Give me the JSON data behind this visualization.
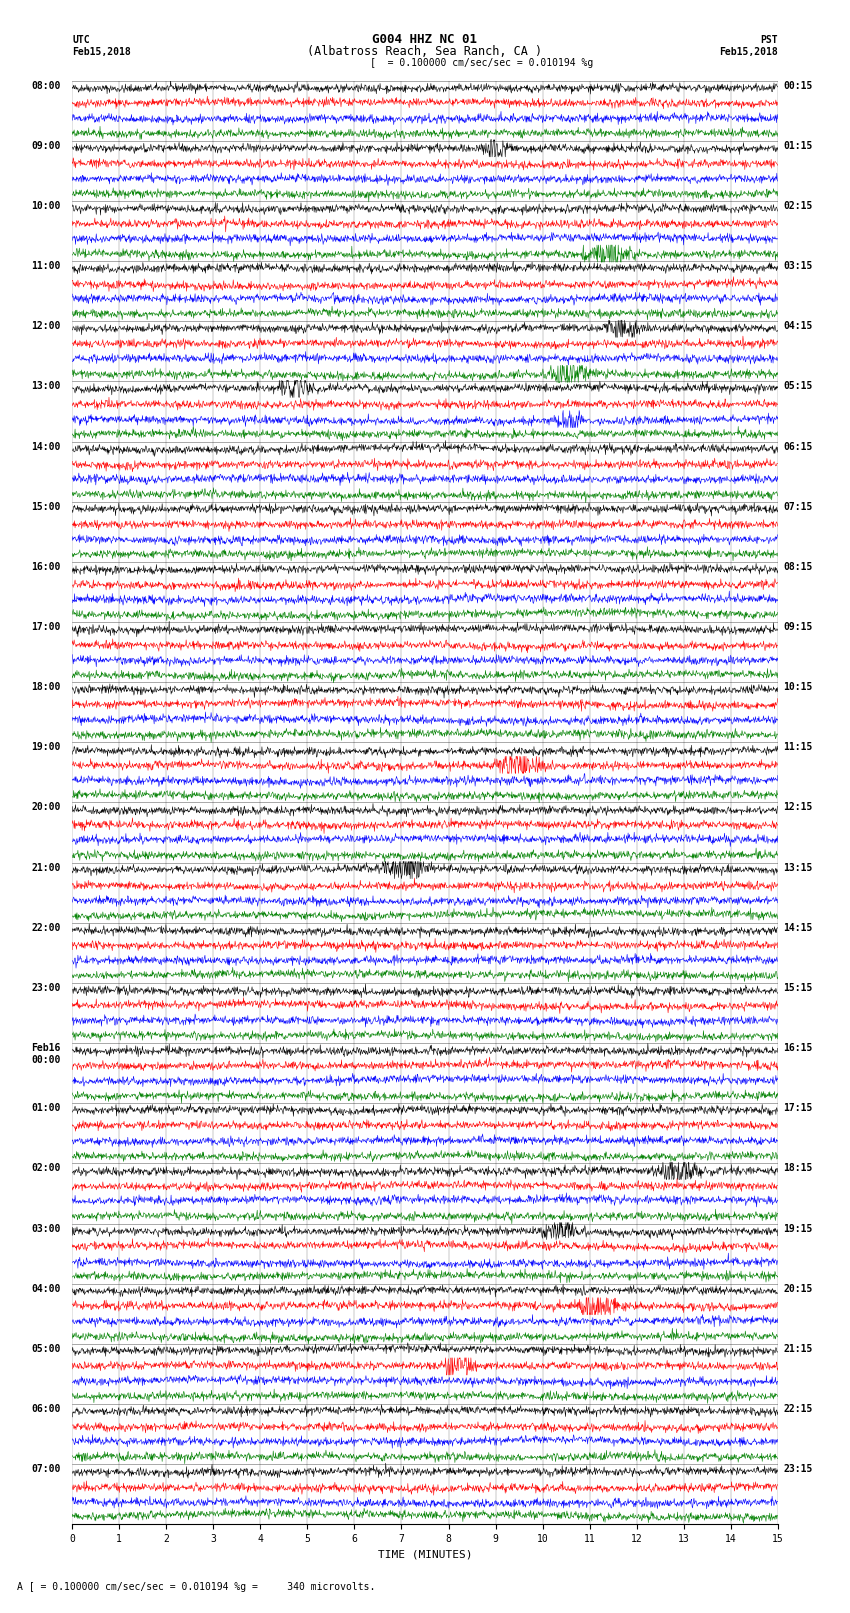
{
  "title_line1": "G004 HHZ NC 01",
  "title_line2": "(Albatross Reach, Sea Ranch, CA )",
  "scale_label": "= 0.100000 cm/sec/sec = 0.010194 %g",
  "bottom_label": "A [ = 0.100000 cm/sec/sec = 0.010194 %g =     340 microvolts.",
  "xlabel": "TIME (MINUTES)",
  "left_header_line1": "UTC",
  "left_header_line2": "Feb15,2018",
  "right_header_line1": "PST",
  "right_header_line2": "Feb15,2018",
  "background_color": "#ffffff",
  "trace_colors": [
    "black",
    "red",
    "blue",
    "green"
  ],
  "left_times": [
    "08:00",
    "09:00",
    "10:00",
    "11:00",
    "12:00",
    "13:00",
    "14:00",
    "15:00",
    "16:00",
    "17:00",
    "18:00",
    "19:00",
    "20:00",
    "21:00",
    "22:00",
    "23:00",
    "Feb16\n00:00",
    "01:00",
    "02:00",
    "03:00",
    "04:00",
    "05:00",
    "06:00",
    "07:00"
  ],
  "right_times": [
    "00:15",
    "01:15",
    "02:15",
    "03:15",
    "04:15",
    "05:15",
    "06:15",
    "07:15",
    "08:15",
    "09:15",
    "10:15",
    "11:15",
    "12:15",
    "13:15",
    "14:15",
    "15:15",
    "16:15",
    "17:15",
    "18:15",
    "19:15",
    "20:15",
    "21:15",
    "22:15",
    "23:15"
  ],
  "num_rows": 24,
  "traces_per_row": 4,
  "minutes_per_row": 15,
  "tick_positions": [
    0,
    1,
    2,
    3,
    4,
    5,
    6,
    7,
    8,
    9,
    10,
    11,
    12,
    13,
    14,
    15
  ],
  "font_size_title": 9,
  "font_size_labels": 7,
  "font_size_ticks": 7,
  "font_size_bottom": 7,
  "trace_amplitude": 0.38,
  "linewidth": 0.4,
  "n_samples": 1500
}
